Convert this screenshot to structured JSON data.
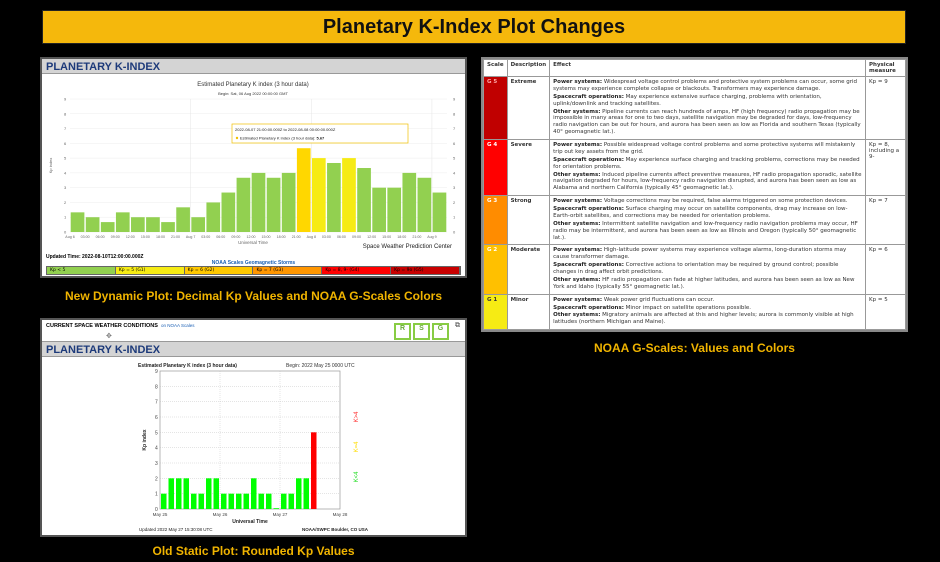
{
  "title": "Planetary K-Index Plot Changes",
  "captions": {
    "dynamic": "New Dynamic Plot: Decimal Kp Values and NOAA G-Scales Colors",
    "static": "Old Static Plot: Rounded Kp Values",
    "table": "NOAA G-Scales: Values and Colors"
  },
  "dynamic": {
    "header": "PLANETARY K-INDEX",
    "updated": "Updated Time: 2022-08-10T12:00:00.000Z",
    "credit": "Space Weather Prediction Center",
    "scales_title": "NOAA Scales Geomagnetic Storms",
    "legend": [
      {
        "label": "Kp < 5",
        "color": "#92d050"
      },
      {
        "label": "Kp = 5 (G1)",
        "color": "#f6eb14"
      },
      {
        "label": "Kp = 6 (G2)",
        "color": "#ffc800"
      },
      {
        "label": "Kp = 7 (G3)",
        "color": "#ff9600"
      },
      {
        "label": "Kp = 8, 9- (G4)",
        "color": "#ff0000"
      },
      {
        "label": "Kp = 9o (G5)",
        "color": "#c80000"
      }
    ],
    "tooltip": {
      "range": "2022-08-07 21:00:00.000Z to 2022-08-08 00:00:00.000Z",
      "series": "Estimated Planetary K index (3 hour data):",
      "value": "5.67"
    }
  },
  "static": {
    "brand": "CURRENT SPACE WEATHER CONDITIONS",
    "brand_link": "on NOAA Scales",
    "rsg": [
      "R",
      "S",
      "G"
    ],
    "header": "PLANETARY K-INDEX",
    "updated": "Updated 2022 May 27 15:30:08 UTC",
    "credit": "NOAA/SWPC Boulder, CO USA",
    "k_labels": [
      "K>4",
      "K=4",
      "K<4"
    ]
  },
  "table": {
    "headers": [
      "Scale",
      "Description",
      "Effect",
      "Physical measure"
    ],
    "rows": [
      {
        "scale": "G 5",
        "color": "#c00000",
        "desc": "Extreme",
        "power": "Widespread voltage control problems and protective system problems can occur, some grid systems may experience complete collapse or blackouts. Transformers may experience damage.",
        "space": "May experience extensive surface charging, problems with orientation, uplink/downlink and tracking satellites.",
        "other": "Pipeline currents can reach hundreds of amps, HF (high frequency) radio propagation may be impossible in many areas for one to two days, satellite navigation may be degraded for days, low-frequency radio navigation can be out for hours, and aurora has been seen as low as Florida and southern Texas (typically 40° geomagnetic lat.).",
        "measure": "Kp = 9"
      },
      {
        "scale": "G 4",
        "color": "#ff0000",
        "desc": "Severe",
        "power": "Possible widespread voltage control problems and some protective systems will mistakenly trip out key assets from the grid.",
        "space": "May experience surface charging and tracking problems, corrections may be needed for orientation problems.",
        "other": "Induced pipeline currents affect preventive measures, HF radio propagation sporadic, satellite navigation degraded for hours, low-frequency radio navigation disrupted, and aurora has been seen as low as Alabama and northern California (typically 45° geomagnetic lat.).",
        "measure": "Kp = 8, including a 9-"
      },
      {
        "scale": "G 3",
        "color": "#ff8c00",
        "desc": "Strong",
        "power": "Voltage corrections may be required, false alarms triggered on some protection devices.",
        "space": "Surface charging may occur on satellite components, drag may increase on low-Earth-orbit satellites, and corrections may be needed for orientation problems.",
        "other": "Intermittent satellite navigation and low-frequency radio navigation problems may occur, HF radio may be intermittent, and aurora has been seen as low as Illinois and Oregon (typically 50° geomagnetic lat.).",
        "measure": "Kp = 7"
      },
      {
        "scale": "G 2",
        "color": "#ffc000",
        "desc": "Moderate",
        "power": "High-latitude power systems may experience voltage alarms, long-duration storms may cause transformer damage.",
        "space": "Corrective actions to orientation may be required by ground control; possible changes in drag affect orbit predictions.",
        "other": "HF radio propagation can fade at higher latitudes, and aurora has been seen as low as New York and Idaho (typically 55° geomagnetic lat.).",
        "measure": "Kp = 6"
      },
      {
        "scale": "G 1",
        "color": "#f6eb14",
        "desc": "Minor",
        "power": "Weak power grid fluctuations can occur.",
        "space": "Minor impact on satellite operations possible.",
        "other": "Migratory animals are affected at this and higher levels; aurora is commonly visible at high latitudes (northern Michigan and Maine).",
        "measure": "Kp = 5"
      }
    ],
    "labels": {
      "power": "Power systems:",
      "space": "Spacecraft operations:",
      "other": "Other systems:"
    }
  },
  "chart_data": [
    {
      "type": "bar",
      "title": "Estimated Planetary K index (3 hour data)",
      "subtitle": "Begin: Sat, 06 Aug 2022 00:00:00 GMT",
      "xlabel": "Universal Time",
      "ylabel": "Kp index",
      "ylim": [
        0,
        9
      ],
      "tick_labels": [
        "Aug 6",
        "03:00",
        "06:00",
        "09:00",
        "12:00",
        "15:00",
        "18:00",
        "21:00",
        "Aug 7",
        "03:00",
        "06:00",
        "09:00",
        "12:00",
        "15:00",
        "18:00",
        "21:00",
        "Aug 8",
        "03:00",
        "06:00",
        "09:00",
        "12:00",
        "15:00",
        "18:00",
        "21:00",
        "Aug 9"
      ],
      "values": [
        1.33,
        1,
        0.67,
        1.33,
        1,
        1,
        0.67,
        1.67,
        1,
        2,
        2.67,
        3.67,
        4,
        3.67,
        4,
        5.67,
        5,
        4.67,
        5,
        4.33,
        3,
        3,
        4,
        3.67,
        2.67
      ],
      "colors": {
        "below5": "#92d050",
        "g1": "#f6eb14",
        "highlight": "#ffd700"
      }
    },
    {
      "type": "bar",
      "title": "Estimated Planetary K index (3 hour data)",
      "subtitle": "Begin:  2022 May 25 0000 UTC",
      "xlabel": "Universal Time",
      "ylabel": "Kp index",
      "ylim": [
        0,
        9
      ],
      "tick_labels": [
        "May 25",
        "May 26",
        "May 27",
        "May 28"
      ],
      "values": [
        1,
        2,
        2,
        2,
        1,
        1,
        2,
        2,
        1,
        1,
        1,
        1,
        2,
        1,
        1,
        0,
        1,
        1,
        2,
        2,
        5
      ],
      "colors": {
        "below4": "#00ff00",
        "equal4": "#ffff00",
        "above4": "#ff0000"
      }
    }
  ]
}
